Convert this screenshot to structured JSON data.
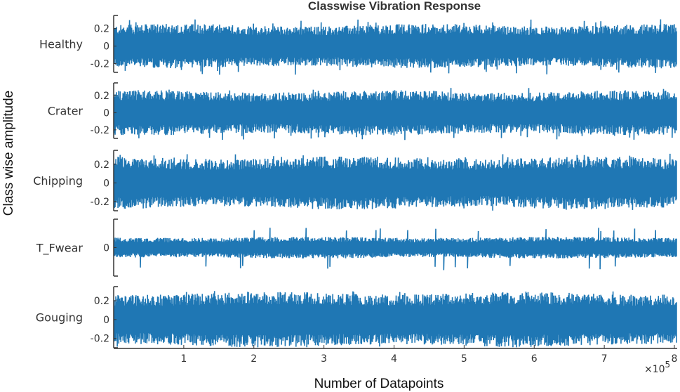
{
  "chart_data": {
    "type": "line",
    "title": "Classwise Vibration Response",
    "xlabel": "Number of Datapoints",
    "ylabel": "Class wise amplitude",
    "x_scale_label": "×10",
    "x_scale_exponent": "5",
    "xlim": [
      0,
      8
    ],
    "x_ticks": [
      1,
      2,
      3,
      4,
      5,
      6,
      7,
      8
    ],
    "color": "#1f77b4",
    "series": [
      {
        "name": "Healthy",
        "ylim": [
          -0.3,
          0.35
        ],
        "y_ticks": [
          "0.2",
          "0",
          "-0.2"
        ],
        "tick_values": [
          0.2,
          0,
          -0.2
        ],
        "envelope": 0.24,
        "peak_max": 0.32,
        "peak_min": -0.33
      },
      {
        "name": "Crater",
        "ylim": [
          -0.3,
          0.35
        ],
        "y_ticks": [
          "0.2",
          "0",
          "-0.2"
        ],
        "tick_values": [
          0.2,
          0,
          -0.2
        ],
        "envelope": 0.25,
        "peak_max": 0.3,
        "peak_min": -0.32
      },
      {
        "name": "Chipping",
        "ylim": [
          -0.3,
          0.35
        ],
        "y_ticks": [
          "0.2",
          "0",
          "-0.2"
        ],
        "tick_values": [
          0.2,
          0,
          -0.2
        ],
        "envelope": 0.27,
        "peak_max": 0.32,
        "peak_min": -0.3
      },
      {
        "name": "T_Fwear",
        "ylim": [
          -0.5,
          0.5
        ],
        "y_ticks": [
          "0"
        ],
        "tick_values": [
          0
        ],
        "envelope": 0.18,
        "peak_max": 0.35,
        "peak_min": -0.4
      },
      {
        "name": "Gouging",
        "ylim": [
          -0.3,
          0.35
        ],
        "y_ticks": [
          "0.2",
          "0",
          "-0.2"
        ],
        "tick_values": [
          0.2,
          0,
          -0.2
        ],
        "envelope": 0.28,
        "peak_max": 0.32,
        "peak_min": -0.3
      }
    ]
  }
}
